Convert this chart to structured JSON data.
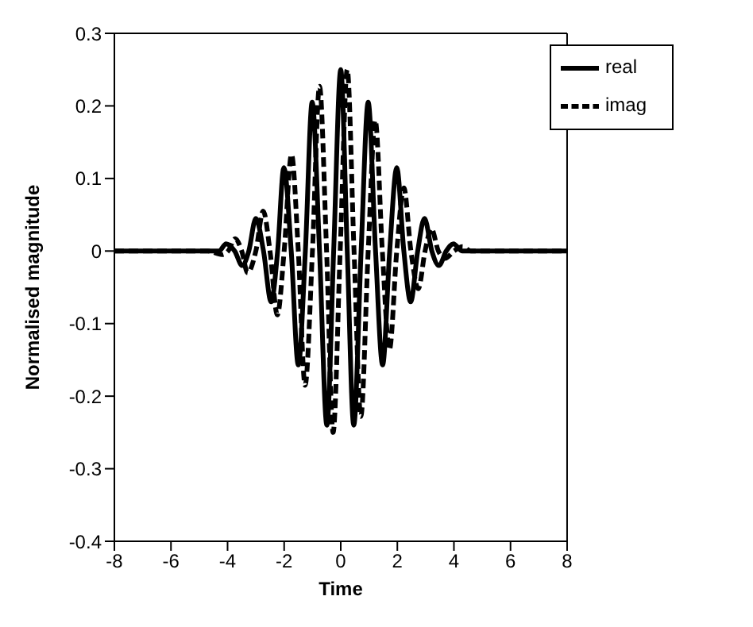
{
  "chart_data": {
    "type": "line",
    "xlabel": "Time",
    "ylabel": "Normalised magnitude",
    "xlim": [
      -8,
      8
    ],
    "xticks": [
      -8,
      -6,
      -4,
      -2,
      0,
      2,
      4,
      6,
      8
    ],
    "ylim": [
      -0.4,
      0.3
    ],
    "yticks": [
      -0.4,
      -0.3,
      -0.2,
      -0.1,
      0,
      0.1,
      0.2,
      0.3
    ],
    "grid": false,
    "legend": "top right",
    "marker": "none",
    "series": [
      {
        "name": "real",
        "color": "#000000",
        "line_style": "solid",
        "x": [
          -8,
          -4.7,
          -4.3,
          -4.05,
          -3.75,
          -3.48,
          -3.25,
          -3.0,
          -2.73,
          -2.46,
          -2.23,
          -2.01,
          -1.75,
          -1.5,
          -1.25,
          -1.01,
          -0.75,
          -0.49,
          -0.25,
          0,
          0.23,
          0.46,
          0.72,
          0.97,
          1.23,
          1.48,
          1.73,
          1.98,
          2.23,
          2.47,
          2.72,
          2.96,
          3.22,
          3.47,
          3.73,
          3.98,
          4.3,
          4.7,
          8
        ],
        "values": [
          0,
          0,
          0,
          0.01,
          0,
          -0.02,
          0,
          0.045,
          0,
          -0.07,
          0,
          0.115,
          0,
          -0.157,
          0,
          0.205,
          0,
          -0.24,
          0,
          0.25,
          0,
          -0.24,
          0,
          0.205,
          0,
          -0.157,
          0,
          0.115,
          0,
          -0.07,
          0,
          0.045,
          0,
          -0.02,
          0,
          0.01,
          0,
          0,
          0
        ]
      },
      {
        "name": "imag",
        "color": "#000000",
        "line_style": "dashed",
        "x": [
          -8,
          -4.7,
          -4.2,
          -3.98,
          -3.73,
          -3.5,
          -3.29,
          -3.0,
          -2.74,
          -2.5,
          -2.24,
          -2.0,
          -1.74,
          -1.5,
          -1.26,
          -1.0,
          -0.75,
          -0.5,
          -0.27,
          -0.02,
          0.23,
          0.47,
          0.71,
          0.97,
          1.22,
          1.47,
          1.72,
          1.98,
          2.23,
          2.48,
          2.74,
          2.98,
          3.2,
          3.45,
          3.69,
          4.0,
          4.3,
          4.6,
          8
        ],
        "values": [
          0,
          0,
          -0.005,
          0,
          0.017,
          0,
          -0.03,
          0,
          0.055,
          0,
          -0.088,
          0,
          0.133,
          0,
          -0.185,
          0,
          0.227,
          0,
          -0.25,
          0,
          0.25,
          0,
          -0.228,
          0,
          0.18,
          0,
          -0.136,
          0,
          0.087,
          0,
          -0.052,
          0,
          0.031,
          0,
          -0.01,
          0,
          0.006,
          0,
          0
        ]
      }
    ]
  }
}
